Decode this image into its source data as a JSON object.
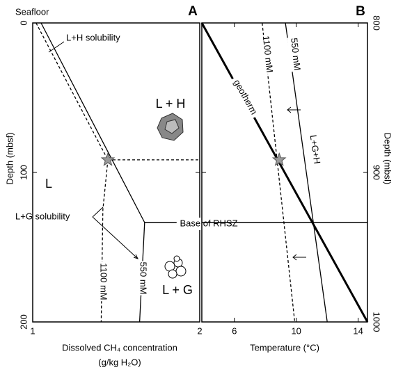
{
  "chart_data": [
    {
      "type": "line",
      "panel": "A",
      "xlabel": [
        "Dissolved CH₄ concentration",
        "(g/kg H₂O)"
      ],
      "ylabel": "Depth (mbsf)",
      "xlim": [
        1,
        2
      ],
      "xticks": [
        1,
        2
      ],
      "ylim": [
        0,
        200
      ],
      "yticks": [
        0,
        100,
        200
      ],
      "y_inverted": true,
      "yaxis_side": "left",
      "series": [
        {
          "name": "L+H solubility",
          "color": "#000000",
          "x": [
            1.05,
            1.67
          ],
          "values": [
            0,
            133.5
          ],
          "dash": false,
          "width": 1.3
        },
        {
          "color": "#000000",
          "x": [
            1.02,
            1.45
          ],
          "values": [
            0,
            91.6
          ],
          "dash": true,
          "width": 1.3
        },
        {
          "name": "550 mM",
          "color": "#000000",
          "x": [
            1.67,
            1.64
          ],
          "values": [
            133.5,
            200
          ],
          "dash": false,
          "width": 1.3
        },
        {
          "name": "1100 mM",
          "color": "#000000",
          "x": [
            1.45,
            1.42,
            1.41
          ],
          "values": [
            91.6,
            125,
            200
          ],
          "dash": true,
          "width": 1.3
        },
        {
          "color": "#000000",
          "x": [
            1.45,
            2
          ],
          "values": [
            91.6,
            91.6
          ],
          "dash": true,
          "width": 1.3
        },
        {
          "name": "Base of RHSZ",
          "color": "#000000",
          "x": [
            1.67,
            2
          ],
          "values": [
            133.5,
            133.5
          ],
          "dash": false,
          "width": 1.5
        },
        {
          "marker": "star",
          "color": "#999999",
          "x": [
            1.45
          ],
          "values": [
            91.6
          ]
        }
      ],
      "annotations": [
        "Seafloor",
        "L + H",
        "L",
        "L+G solubility",
        "L + G"
      ]
    },
    {
      "type": "line",
      "panel": "B",
      "xlabel": [
        "Temperature (°C)"
      ],
      "ylabel": "Depth (mbsl)",
      "xlim": [
        3.9,
        14.6
      ],
      "xticks": [
        6,
        10,
        14
      ],
      "ylim": [
        800,
        1000
      ],
      "yticks": [
        800,
        900,
        1000
      ],
      "y_inverted": true,
      "yaxis_side": "right",
      "series": [
        {
          "name": "geotherm",
          "color": "#000000",
          "x": [
            3.9,
            14.6
          ],
          "values": [
            800,
            1000
          ],
          "dash": false,
          "width": 3
        },
        {
          "name": "1100 mM",
          "color": "#000000",
          "x": [
            7.8,
            9.9
          ],
          "values": [
            800,
            1000
          ],
          "dash": true,
          "width": 1.3
        },
        {
          "name": "550 mM",
          "color": "#000000",
          "x": [
            9.3,
            12.0
          ],
          "values": [
            800,
            1000
          ],
          "dash": false,
          "width": 1.3
        },
        {
          "color": "#000000",
          "x": [
            3.9,
            14.6
          ],
          "values": [
            933.5,
            933.5
          ],
          "dash": false,
          "width": 1.5
        },
        {
          "marker": "star",
          "color": "#999999",
          "x": [
            8.9
          ],
          "values": [
            891.6
          ]
        }
      ],
      "annotations": [
        "L+G+H"
      ]
    }
  ]
}
